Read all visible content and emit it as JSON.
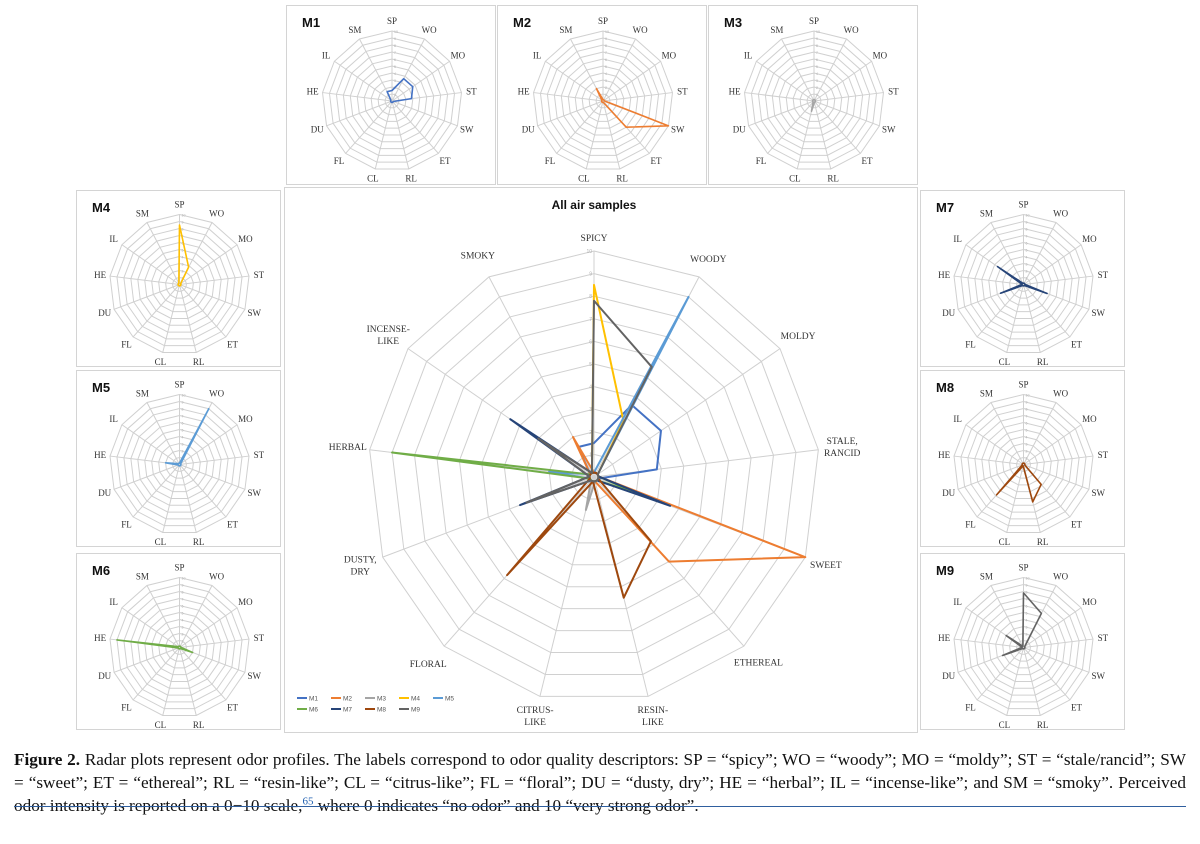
{
  "figure": {
    "caption_lead": "Figure 2.",
    "caption_text": "Radar plots represent odor profiles. The labels correspond to odor quality descriptors: SP = “spicy”; WO = “woody”; MO = “moldy”; ST = “stale/rancid”; SW = “sweet”; ET = “ethereal”; RL = “resin-like”; CL = “citrus-like”; FL = “floral”; DU = “dusty, dry”; HE = “herbal”; IL = “incense-like”; and SM = “smoky”. Perceived odor intensity is reported on a 0−10 scale,",
    "caption_ref": "65",
    "caption_tail": " where 0 indicates “no odor” and 10 “very strong odor”."
  },
  "colors": {
    "M1": "#4472c4",
    "M2": "#ed7d31",
    "M3": "#a5a5a5",
    "M4": "#ffc000",
    "M5": "#5b9bd5",
    "M6": "#70ad47",
    "M7": "#264478",
    "M8": "#9e480e",
    "M9": "#636363",
    "grid": "#d0d0d0",
    "tick": "#b0b0b0"
  },
  "chart_data": {
    "type": "radar",
    "axis_range": [
      0,
      10
    ],
    "short_labels": [
      "SP",
      "WO",
      "MO",
      "ST",
      "SW",
      "ET",
      "RL",
      "CL",
      "FL",
      "DU",
      "HE",
      "IL",
      "SM"
    ],
    "main": {
      "title": "All air samples",
      "labels": [
        [
          "SPICY"
        ],
        [
          "WOODY"
        ],
        [
          "MOLDY"
        ],
        [
          "STALE,",
          "RANCID"
        ],
        [
          "SWEET"
        ],
        [
          "ETHEREAL"
        ],
        [
          "RESIN-",
          "LIKE"
        ],
        [
          "CITRUS-",
          "LIKE"
        ],
        [
          "FLORAL"
        ],
        [
          "DUSTY,",
          "DRY"
        ],
        [
          "HERBAL"
        ],
        [
          "INCENSE-",
          "LIKE"
        ],
        [
          "SMOKY"
        ]
      ],
      "ticks": [
        "1",
        "2",
        "3",
        "4",
        "5",
        "6",
        "7",
        "8",
        "9",
        "10"
      ],
      "legend": [
        "M1",
        "M2",
        "M3",
        "M4",
        "M5",
        "M6",
        "M7",
        "M8",
        "M9"
      ]
    },
    "series": [
      {
        "name": "M1",
        "values": [
          1.5,
          3.6,
          3.6,
          2.8,
          0.2,
          0.2,
          0.2,
          0.2,
          0.2,
          0.2,
          0.2,
          0.2,
          1.5
        ]
      },
      {
        "name": "M2",
        "values": [
          0.2,
          0.2,
          0.2,
          0.2,
          10.0,
          5.0,
          0.2,
          0.2,
          0.2,
          0.2,
          0.2,
          0.2,
          2.0
        ]
      },
      {
        "name": "M3",
        "values": [
          0.2,
          0.2,
          0.2,
          0.2,
          0.2,
          0.2,
          0.2,
          1.5,
          0.2,
          0.2,
          0.2,
          0.2,
          0.2
        ]
      },
      {
        "name": "M4",
        "values": [
          8.5,
          2.8,
          0.2,
          0.2,
          0.2,
          0.2,
          0.2,
          0.2,
          0.2,
          0.2,
          0.2,
          0.2,
          0.2
        ]
      },
      {
        "name": "M5",
        "values": [
          0.2,
          9.0,
          0.2,
          0.2,
          0.2,
          0.2,
          0.2,
          0.2,
          0.2,
          0.2,
          2.0,
          0.2,
          0.2
        ]
      },
      {
        "name": "M6",
        "values": [
          0.2,
          0.2,
          0.2,
          0.2,
          2.0,
          0.2,
          0.2,
          0.2,
          0.2,
          0.2,
          9.0,
          0.2,
          0.2
        ]
      },
      {
        "name": "M7",
        "values": [
          0.2,
          0.2,
          0.2,
          0.2,
          3.6,
          0.2,
          0.2,
          0.2,
          0.2,
          3.5,
          0.2,
          4.5,
          0.2
        ]
      },
      {
        "name": "M8",
        "values": [
          0.2,
          0.2,
          0.2,
          0.2,
          0.2,
          3.8,
          5.5,
          0.2,
          5.8,
          0.2,
          0.2,
          0.2,
          0.2
        ]
      },
      {
        "name": "M9",
        "values": [
          7.8,
          5.5,
          0.2,
          0.2,
          0.2,
          0.2,
          0.2,
          0.2,
          0.2,
          3.2,
          0.2,
          3.0,
          0.2
        ]
      }
    ]
  }
}
